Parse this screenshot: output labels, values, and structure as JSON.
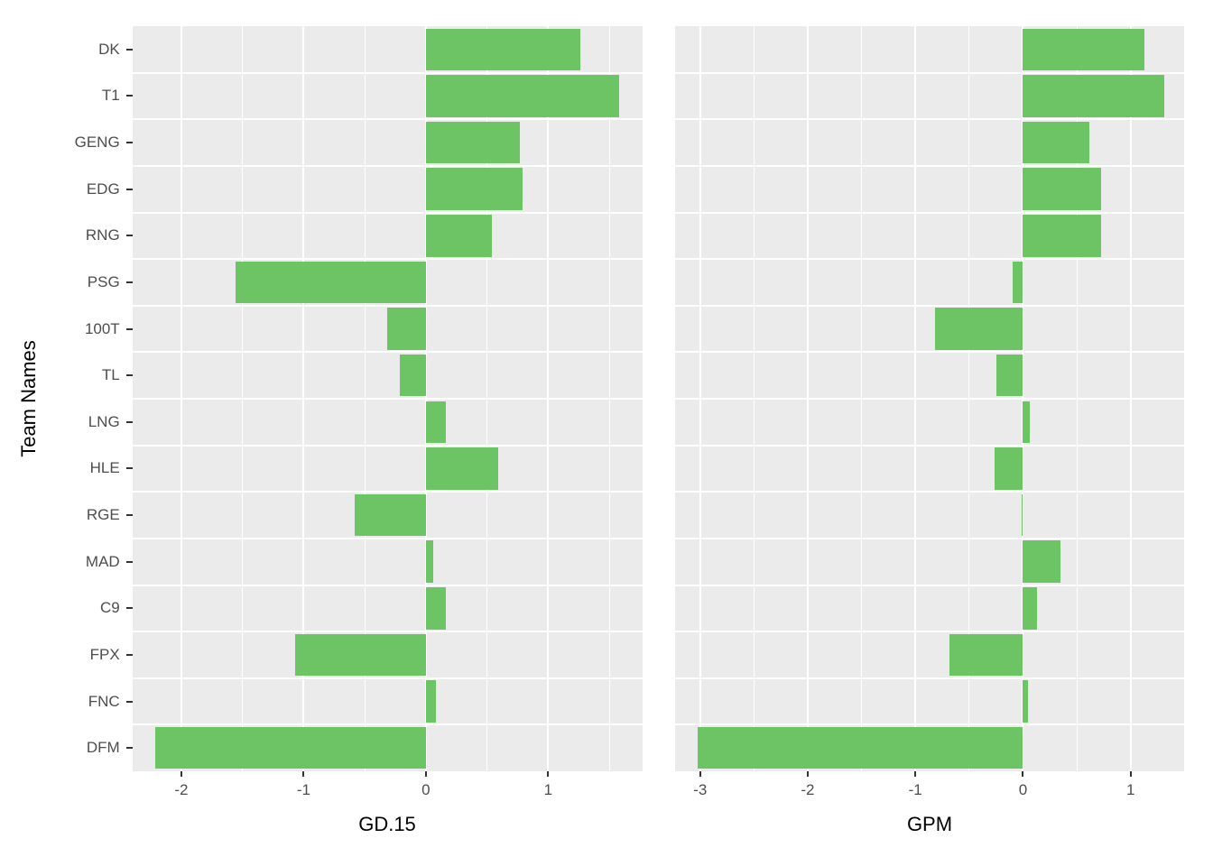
{
  "chart_data": [
    {
      "type": "bar",
      "orientation": "horizontal",
      "panel_id": "gd15",
      "xlabel": "GD.15",
      "ylabel": "Team Names",
      "categories": [
        "DK",
        "T1",
        "GENG",
        "EDG",
        "RNG",
        "PSG",
        "100T",
        "TL",
        "LNG",
        "HLE",
        "RGE",
        "MAD",
        "C9",
        "FPX",
        "FNC",
        "DFM"
      ],
      "values": [
        1.26,
        1.58,
        0.77,
        0.79,
        0.54,
        -1.56,
        -0.32,
        -0.21,
        0.16,
        0.59,
        -0.58,
        0.06,
        0.16,
        -1.07,
        0.08,
        -2.21
      ],
      "xlim": [
        -2.4,
        1.77
      ],
      "xticks": [
        -2,
        -1,
        0,
        1
      ],
      "xtick_labels": [
        "-2",
        "-1",
        "0",
        "1"
      ],
      "grid": true,
      "legend": "none"
    },
    {
      "type": "bar",
      "orientation": "horizontal",
      "panel_id": "gpm",
      "xlabel": "GPM",
      "ylabel": "Team Names",
      "categories": [
        "DK",
        "T1",
        "GENG",
        "EDG",
        "RNG",
        "PSG",
        "100T",
        "TL",
        "LNG",
        "HLE",
        "RGE",
        "MAD",
        "C9",
        "FPX",
        "FNC",
        "DFM"
      ],
      "values": [
        1.13,
        1.31,
        0.62,
        0.73,
        0.73,
        -0.1,
        -0.82,
        -0.25,
        0.06,
        -0.26,
        -0.01,
        0.35,
        0.13,
        -0.68,
        0.05,
        -3.02
      ],
      "xlim": [
        -3.23,
        1.5
      ],
      "xticks": [
        -3,
        -2,
        -1,
        0,
        1
      ],
      "xtick_labels": [
        "-3",
        "-2",
        "-1",
        "0",
        "1"
      ],
      "grid": true,
      "legend": "none"
    }
  ],
  "colors": {
    "bar_fill": "#6cc464",
    "panel_background": "#ebebeb",
    "gridline": "#ffffff",
    "tick_text": "#4d4d4d",
    "axis_title_text": "#000000",
    "tick_mark": "#333333"
  }
}
